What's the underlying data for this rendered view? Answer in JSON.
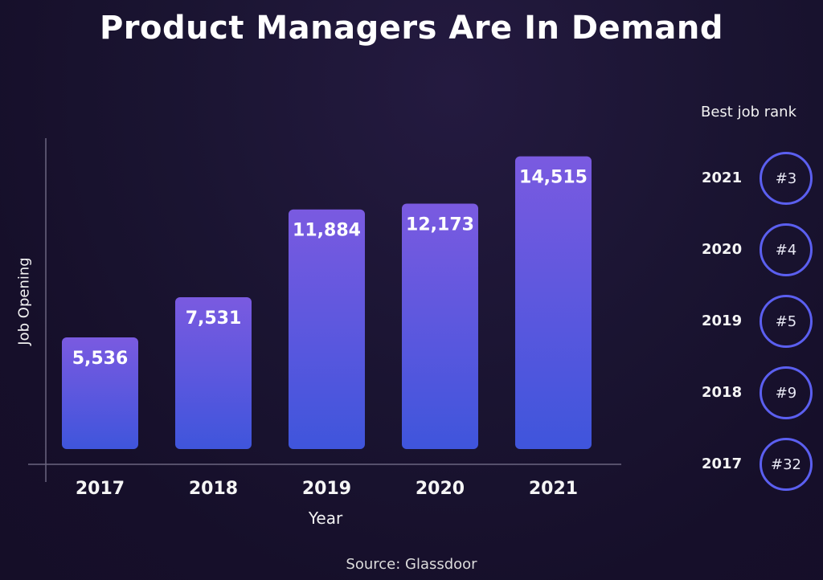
{
  "chart_data": {
    "type": "bar",
    "title": "Product Managers Are In Demand",
    "xlabel": "Year",
    "ylabel": "Job Opening",
    "categories": [
      "2017",
      "2018",
      "2019",
      "2020",
      "2021"
    ],
    "values": [
      5536,
      7531,
      11884,
      12173,
      14515
    ],
    "value_labels": [
      "5,536",
      "7,531",
      "11,884",
      "12,173",
      "14,515"
    ],
    "ylim": [
      0,
      16000
    ],
    "grid": false,
    "legend": "none",
    "bar_color_top": "#7a5ae0",
    "bar_color_bottom": "#3f55dc"
  },
  "ranking": {
    "title": "Best job rank",
    "items": [
      {
        "year": "2021",
        "rank": "#3"
      },
      {
        "year": "2020",
        "rank": "#4"
      },
      {
        "year": "2019",
        "rank": "#5"
      },
      {
        "year": "2018",
        "rank": "#9"
      },
      {
        "year": "2017",
        "rank": "#32"
      }
    ],
    "circle_color": "#5b5ff0"
  },
  "source": "Source: Glassdoor"
}
